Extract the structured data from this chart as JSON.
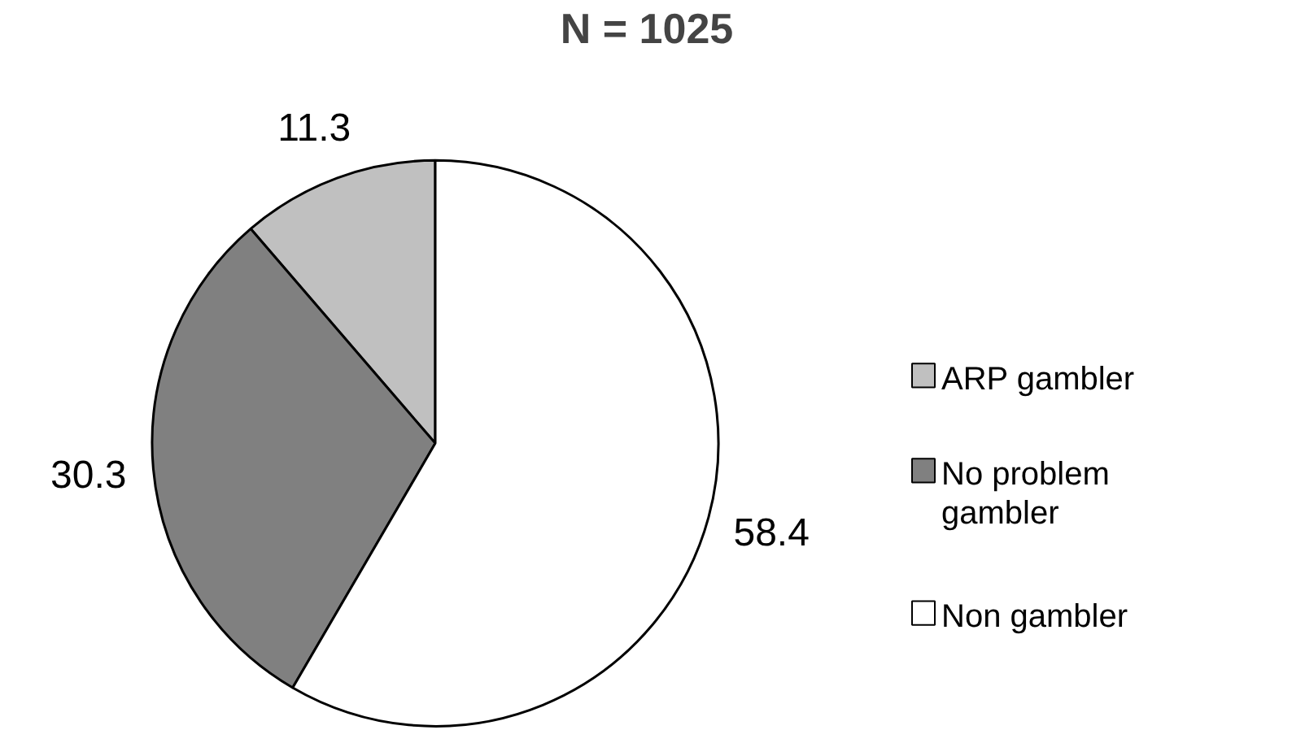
{
  "chart_data": {
    "type": "pie",
    "title": "N = 1025",
    "categories": [
      "ARP gambler",
      "No problem gambler",
      "Non gambler"
    ],
    "values": [
      11.3,
      30.3,
      58.4
    ],
    "colors": [
      "#c0c0c0",
      "#808080",
      "#ffffff"
    ],
    "data_labels": true,
    "legend": "right"
  }
}
